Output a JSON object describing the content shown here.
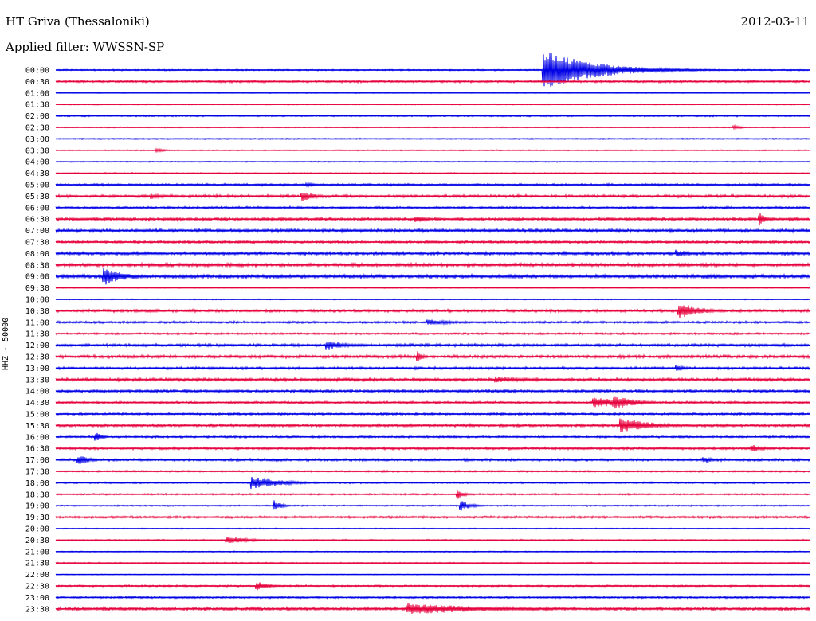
{
  "header": {
    "station": "HT Griva (Thessaloniki)",
    "date": "2012-03-11",
    "filter": "Applied filter: WWSSN-SP"
  },
  "chart_data": {
    "type": "line",
    "title": "HT Griva (Thessaloniki)",
    "subtitle": "Applied filter: WWSSN-SP",
    "ylabel": "HHZ - 50000",
    "row_times": [
      "00:00",
      "00:30",
      "01:00",
      "01:30",
      "02:00",
      "02:30",
      "03:00",
      "03:30",
      "04:00",
      "04:30",
      "05:00",
      "05:30",
      "06:00",
      "06:30",
      "07:00",
      "07:30",
      "08:00",
      "08:30",
      "09:00",
      "09:30",
      "10:00",
      "10:30",
      "11:00",
      "11:30",
      "12:00",
      "12:30",
      "13:00",
      "13:30",
      "14:00",
      "14:30",
      "15:00",
      "15:30",
      "16:00",
      "16:30",
      "17:00",
      "17:30",
      "18:00",
      "18:30",
      "19:00",
      "19:30",
      "20:00",
      "20:30",
      "21:00",
      "21:30",
      "22:00",
      "22:30",
      "23:00",
      "23:30"
    ],
    "row_minutes": 30,
    "colors": [
      "#0000e6",
      "#e6003c"
    ],
    "noise": [
      1.0,
      1.6,
      0.6,
      0.8,
      1.2,
      0.8,
      0.9,
      0.8,
      0.8,
      1.0,
      1.6,
      2.0,
      1.6,
      2.2,
      2.4,
      1.8,
      2.2,
      2.4,
      2.6,
      0.6,
      0.8,
      2.0,
      1.6,
      1.4,
      2.0,
      2.2,
      1.8,
      2.2,
      2.0,
      1.6,
      1.6,
      2.0,
      1.4,
      1.8,
      1.8,
      1.2,
      1.2,
      1.2,
      1.0,
      1.6,
      0.8,
      1.0,
      0.8,
      1.0,
      0.6,
      1.2,
      1.4,
      2.2
    ],
    "events": [
      {
        "row": 0,
        "minute": 19.4,
        "amp": 26,
        "dur": 2.0
      },
      {
        "row": 5,
        "minute": 27.0,
        "amp": 3,
        "dur": 0.3
      },
      {
        "row": 7,
        "minute": 4.0,
        "amp": 2.5,
        "dur": 0.4
      },
      {
        "row": 10,
        "minute": 10.0,
        "amp": 3,
        "dur": 0.4
      },
      {
        "row": 11,
        "minute": 9.8,
        "amp": 7,
        "dur": 0.5
      },
      {
        "row": 11,
        "minute": 3.8,
        "amp": 4,
        "dur": 0.5
      },
      {
        "row": 13,
        "minute": 28.0,
        "amp": 9,
        "dur": 0.3
      },
      {
        "row": 13,
        "minute": 14.3,
        "amp": 5,
        "dur": 0.5
      },
      {
        "row": 16,
        "minute": 24.7,
        "amp": 5,
        "dur": 0.6
      },
      {
        "row": 18,
        "minute": 1.9,
        "amp": 12,
        "dur": 0.8
      },
      {
        "row": 21,
        "minute": 24.8,
        "amp": 11,
        "dur": 0.8
      },
      {
        "row": 22,
        "minute": 14.8,
        "amp": 4,
        "dur": 1.2
      },
      {
        "row": 24,
        "minute": 10.8,
        "amp": 6,
        "dur": 0.8
      },
      {
        "row": 25,
        "minute": 14.4,
        "amp": 8,
        "dur": 0.2
      },
      {
        "row": 26,
        "minute": 24.7,
        "amp": 4,
        "dur": 0.4
      },
      {
        "row": 27,
        "minute": 17.5,
        "amp": 4,
        "dur": 1.5
      },
      {
        "row": 29,
        "minute": 21.4,
        "amp": 8,
        "dur": 1.0
      },
      {
        "row": 29,
        "minute": 22.2,
        "amp": 10,
        "dur": 0.8
      },
      {
        "row": 31,
        "minute": 22.5,
        "amp": 10,
        "dur": 1.2
      },
      {
        "row": 32,
        "minute": 1.6,
        "amp": 6,
        "dur": 0.3
      },
      {
        "row": 33,
        "minute": 27.7,
        "amp": 5,
        "dur": 0.5
      },
      {
        "row": 34,
        "minute": 0.9,
        "amp": 6,
        "dur": 0.5
      },
      {
        "row": 34,
        "minute": 25.8,
        "amp": 5,
        "dur": 0.3
      },
      {
        "row": 36,
        "minute": 7.8,
        "amp": 8,
        "dur": 1.2
      },
      {
        "row": 37,
        "minute": 16.0,
        "amp": 6,
        "dur": 0.3
      },
      {
        "row": 38,
        "minute": 8.7,
        "amp": 7,
        "dur": 0.3
      },
      {
        "row": 38,
        "minute": 16.1,
        "amp": 7,
        "dur": 0.4
      },
      {
        "row": 41,
        "minute": 6.8,
        "amp": 5,
        "dur": 0.9
      },
      {
        "row": 45,
        "minute": 8.0,
        "amp": 6,
        "dur": 0.5
      },
      {
        "row": 47,
        "minute": 14.0,
        "amp": 7,
        "dur": 3.5
      }
    ]
  }
}
